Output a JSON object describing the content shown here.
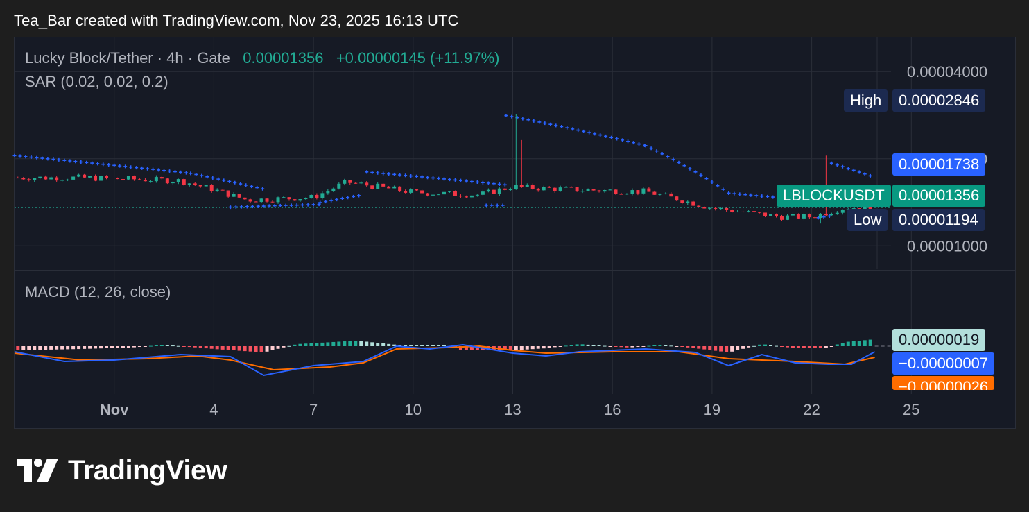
{
  "caption": "Tea_Bar created with TradingView.com, Nov 23, 2025 16:13 UTC",
  "legend": {
    "symbol": "Lucky Block/Tether · 4h · Gate",
    "price": "0.00001356",
    "change": "+0.00000145 (+11.97%)",
    "sar": "SAR (0.02, 0.02, 0.2)",
    "macd": "MACD (12, 26, close)"
  },
  "price_axis": {
    "ticks": [
      "0.00004000",
      "0.00002000",
      "0.00001000"
    ],
    "high_label": "High",
    "high_value": "0.00002846",
    "sar_value": "0.00001738",
    "symbol_tag": "LBLOCKUSDT",
    "last_value": "0.00001356",
    "low_label": "Low",
    "low_value": "0.00001194"
  },
  "macd_axis": {
    "histogram_value": "0.00000019",
    "macd_value": "−0.00000007",
    "signal_value": "−0.00000026"
  },
  "time_axis": [
    "Nov",
    "4",
    "7",
    "10",
    "13",
    "16",
    "19",
    "22",
    "25"
  ],
  "colors": {
    "up": "#22ab94",
    "down": "#f23645",
    "sar": "#2962ff",
    "macd": "#2962ff",
    "signal": "#ff6d00",
    "hist_up": "#22ab94",
    "hist_down": "#f7525f",
    "grid": "#2a2e39",
    "background": "#161a25"
  },
  "chart_data": {
    "type": "candlestick",
    "pair": "Lucky Block/Tether",
    "interval": "4h",
    "exchange": "Gate",
    "y_scale": "log",
    "y_range": [
      8.3e-06,
      5.25e-05
    ],
    "x_range_days": [
      "Oct 29",
      "Nov 26"
    ],
    "last": 1.356e-05,
    "high": 2.846e-05,
    "low": 1.194e-05,
    "sar_last": 1.738e-05,
    "candles_approx_close": [
      {
        "date": "Oct 31",
        "close": 1.72e-05
      },
      {
        "date": "Nov 3",
        "close": 1.68e-05
      },
      {
        "date": "Nov 5",
        "close": 1.44e-05
      },
      {
        "date": "Nov 7",
        "close": 1.47e-05
      },
      {
        "date": "Nov 8",
        "close": 1.66e-05
      },
      {
        "date": "Nov 10",
        "close": 1.53e-05
      },
      {
        "date": "Nov 12",
        "close": 1.5e-05
      },
      {
        "date": "Nov 13",
        "close": 1.6e-05
      },
      {
        "date": "Nov 15",
        "close": 1.56e-05
      },
      {
        "date": "Nov 17",
        "close": 1.54e-05
      },
      {
        "date": "Nov 19",
        "close": 1.35e-05
      },
      {
        "date": "Nov 21",
        "close": 1.26e-05
      },
      {
        "date": "Nov 22",
        "close": 1.26e-05
      },
      {
        "date": "Nov 23",
        "close": 1.356e-05
      }
    ],
    "macd": {
      "fast": 12,
      "slow": 26,
      "source": "close",
      "last_histogram": 1.9e-07,
      "last_macd": -7e-08,
      "last_signal": -2.6e-07
    }
  }
}
